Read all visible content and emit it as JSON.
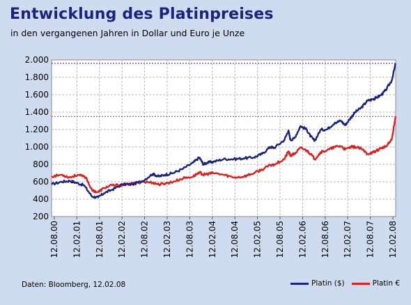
{
  "chart_data": {
    "type": "line",
    "title": "Entwicklung des Platinpreises",
    "subtitle": "in den vergangenen Jahren in Dollar und Euro je Unze",
    "ylim": [
      200,
      2000
    ],
    "yticks": [
      "200",
      "400",
      "600",
      "800",
      "1.000",
      "1.200",
      "1.400",
      "1.600",
      "1.800",
      "2.000"
    ],
    "x": [
      "12.08.00",
      "12.02.01",
      "12.08.01",
      "12.02.02",
      "12.08.02",
      "12.02.03",
      "12.08.03",
      "12.02.04",
      "12.08.04",
      "12.02.05",
      "12.08.05",
      "12.02.06",
      "12.08.06",
      "12.02.07",
      "12.08.07",
      "12.02.08"
    ],
    "grid": true,
    "legend_position": "bottom-right",
    "reference_lines": [
      {
        "series": "Platin ($)",
        "value": 1960,
        "color": "#1a237e"
      },
      {
        "series": "Platin €",
        "value": 1350,
        "color": "#e02020"
      }
    ],
    "series": [
      {
        "name": "Platin ($)",
        "color": "#1a237e",
        "values": [
          [
            0,
            570
          ],
          [
            0.5,
            600
          ],
          [
            0.9,
            610
          ],
          [
            1.2,
            590
          ],
          [
            1.6,
            560
          ],
          [
            2,
            430
          ],
          [
            2.3,
            420
          ],
          [
            2.6,
            470
          ],
          [
            3,
            510
          ],
          [
            3.5,
            570
          ],
          [
            4,
            570
          ],
          [
            4.5,
            610
          ],
          [
            5,
            690
          ],
          [
            5.3,
            660
          ],
          [
            5.6,
            680
          ],
          [
            6,
            700
          ],
          [
            6.5,
            750
          ],
          [
            7,
            820
          ],
          [
            7.3,
            880
          ],
          [
            7.5,
            800
          ],
          [
            7.7,
            820
          ],
          [
            8,
            830
          ],
          [
            8.5,
            860
          ],
          [
            9,
            860
          ],
          [
            9.5,
            870
          ],
          [
            10,
            880
          ],
          [
            10.4,
            920
          ],
          [
            10.8,
            1000
          ],
          [
            11,
            990
          ],
          [
            11.5,
            1080
          ],
          [
            11.7,
            1190
          ],
          [
            11.8,
            1080
          ],
          [
            12,
            1100
          ],
          [
            12.3,
            1240
          ],
          [
            12.6,
            1200
          ],
          [
            12.8,
            1120
          ],
          [
            13,
            1070
          ],
          [
            13.3,
            1200
          ],
          [
            13.6,
            1200
          ],
          [
            14,
            1280
          ],
          [
            14.3,
            1300
          ],
          [
            14.5,
            1250
          ],
          [
            14.8,
            1340
          ],
          [
            15,
            1400
          ],
          [
            15.3,
            1450
          ],
          [
            15.6,
            1530
          ],
          [
            15.9,
            1550
          ],
          [
            16,
            1560
          ],
          [
            16.3,
            1600
          ],
          [
            16.5,
            1650
          ],
          [
            16.8,
            1760
          ],
          [
            17,
            1960
          ]
        ]
      },
      {
        "name": "Platin €",
        "color": "#e02020",
        "values": [
          [
            0,
            660
          ],
          [
            0.5,
            680
          ],
          [
            0.9,
            650
          ],
          [
            1.3,
            680
          ],
          [
            1.7,
            650
          ],
          [
            2,
            500
          ],
          [
            2.3,
            480
          ],
          [
            2.6,
            530
          ],
          [
            3,
            560
          ],
          [
            3.5,
            560
          ],
          [
            4,
            580
          ],
          [
            4.5,
            600
          ],
          [
            5,
            590
          ],
          [
            5.3,
            570
          ],
          [
            5.6,
            580
          ],
          [
            6,
            600
          ],
          [
            6.5,
            640
          ],
          [
            7,
            660
          ],
          [
            7.3,
            710
          ],
          [
            7.5,
            680
          ],
          [
            7.7,
            690
          ],
          [
            8,
            700
          ],
          [
            8.5,
            680
          ],
          [
            9,
            650
          ],
          [
            9.5,
            660
          ],
          [
            10,
            700
          ],
          [
            10.4,
            740
          ],
          [
            10.8,
            790
          ],
          [
            11,
            800
          ],
          [
            11.5,
            860
          ],
          [
            11.7,
            950
          ],
          [
            11.8,
            900
          ],
          [
            12,
            920
          ],
          [
            12.3,
            990
          ],
          [
            12.6,
            960
          ],
          [
            12.8,
            920
          ],
          [
            13,
            860
          ],
          [
            13.3,
            940
          ],
          [
            13.6,
            960
          ],
          [
            14,
            1000
          ],
          [
            14.3,
            1010
          ],
          [
            14.5,
            970
          ],
          [
            14.8,
            1000
          ],
          [
            15,
            1000
          ],
          [
            15.3,
            980
          ],
          [
            15.6,
            920
          ],
          [
            15.9,
            940
          ],
          [
            16,
            950
          ],
          [
            16.3,
            990
          ],
          [
            16.5,
            1000
          ],
          [
            16.8,
            1080
          ],
          [
            17,
            1350
          ]
        ]
      }
    ]
  },
  "source": "Daten: Bloomberg, 12.02.08",
  "colors": {
    "background": "#cfdcf0",
    "plot_bg": "#ffffff",
    "grid": "#b8b8b8"
  }
}
